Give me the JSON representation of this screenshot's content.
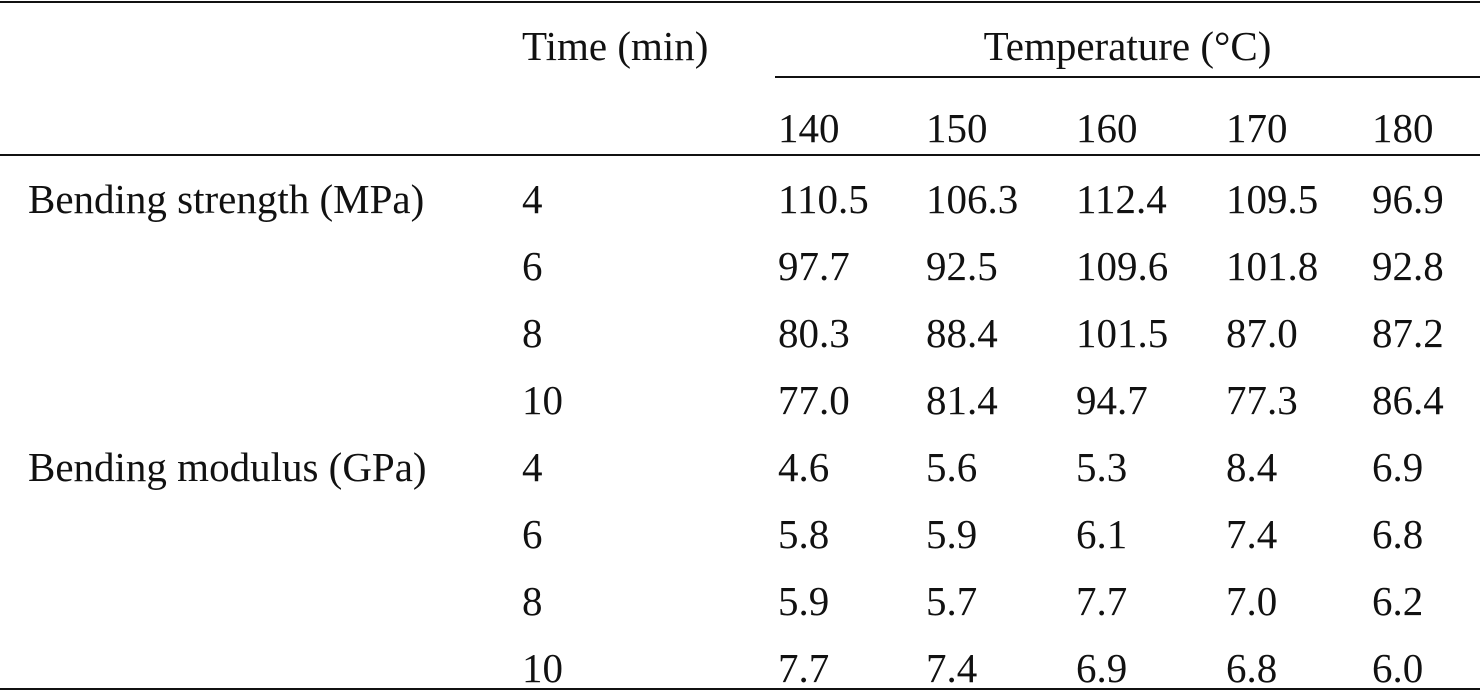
{
  "table": {
    "header": {
      "time_label": "Time (min)",
      "temperature_label": "Temperature (°C)",
      "temperatures": [
        "140",
        "150",
        "160",
        "170",
        "180"
      ]
    },
    "groups": [
      {
        "label": "Bending strength (MPa)",
        "rows": [
          {
            "time": "4",
            "values": [
              "110.5",
              "106.3",
              "112.4",
              "109.5",
              "96.9"
            ]
          },
          {
            "time": "6",
            "values": [
              "97.7",
              "92.5",
              "109.6",
              "101.8",
              "92.8"
            ]
          },
          {
            "time": "8",
            "values": [
              "80.3",
              "88.4",
              "101.5",
              "87.0",
              "87.2"
            ]
          },
          {
            "time": "10",
            "values": [
              "77.0",
              "81.4",
              "94.7",
              "77.3",
              "86.4"
            ]
          }
        ]
      },
      {
        "label": "Bending modulus (GPa)",
        "rows": [
          {
            "time": "4",
            "values": [
              "4.6",
              "5.6",
              "5.3",
              "8.4",
              "6.9"
            ]
          },
          {
            "time": "6",
            "values": [
              "5.8",
              "5.9",
              "6.1",
              "7.4",
              "6.8"
            ]
          },
          {
            "time": "8",
            "values": [
              "5.9",
              "5.7",
              "7.7",
              "7.0",
              "6.2"
            ]
          },
          {
            "time": "10",
            "values": [
              "7.7",
              "7.4",
              "6.9",
              "6.8",
              "6.0"
            ]
          }
        ]
      }
    ]
  }
}
